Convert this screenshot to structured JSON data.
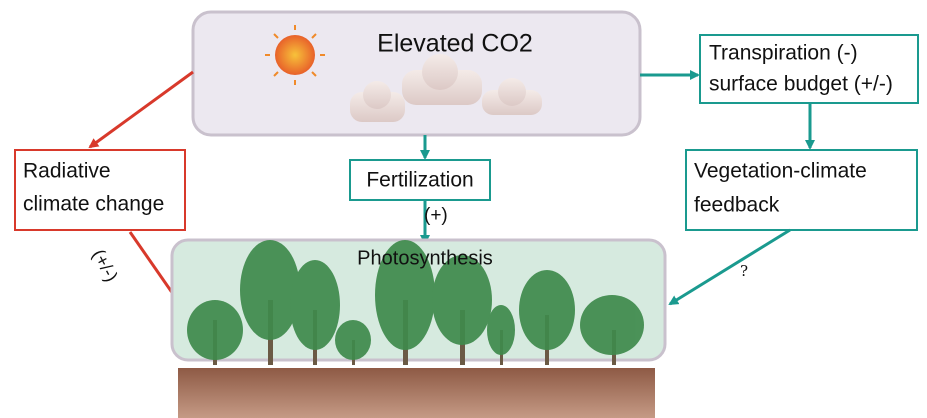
{
  "nodes": [
    {
      "label": "Elevated CO2"
    },
    {
      "lines": [
        "Transpiration (-)",
        "surface budget (+/-)"
      ]
    },
    {
      "lines": [
        "Radiative",
        "climate change"
      ]
    },
    {
      "label": "Fertilization"
    },
    {
      "lines": [
        "Vegetation-climate",
        "feedback"
      ]
    },
    {
      "label": "Photosynthesis"
    }
  ],
  "edges": [
    {
      "label": "(+)"
    },
    {
      "label": "(+/-)"
    },
    {
      "label": "?"
    }
  ]
}
